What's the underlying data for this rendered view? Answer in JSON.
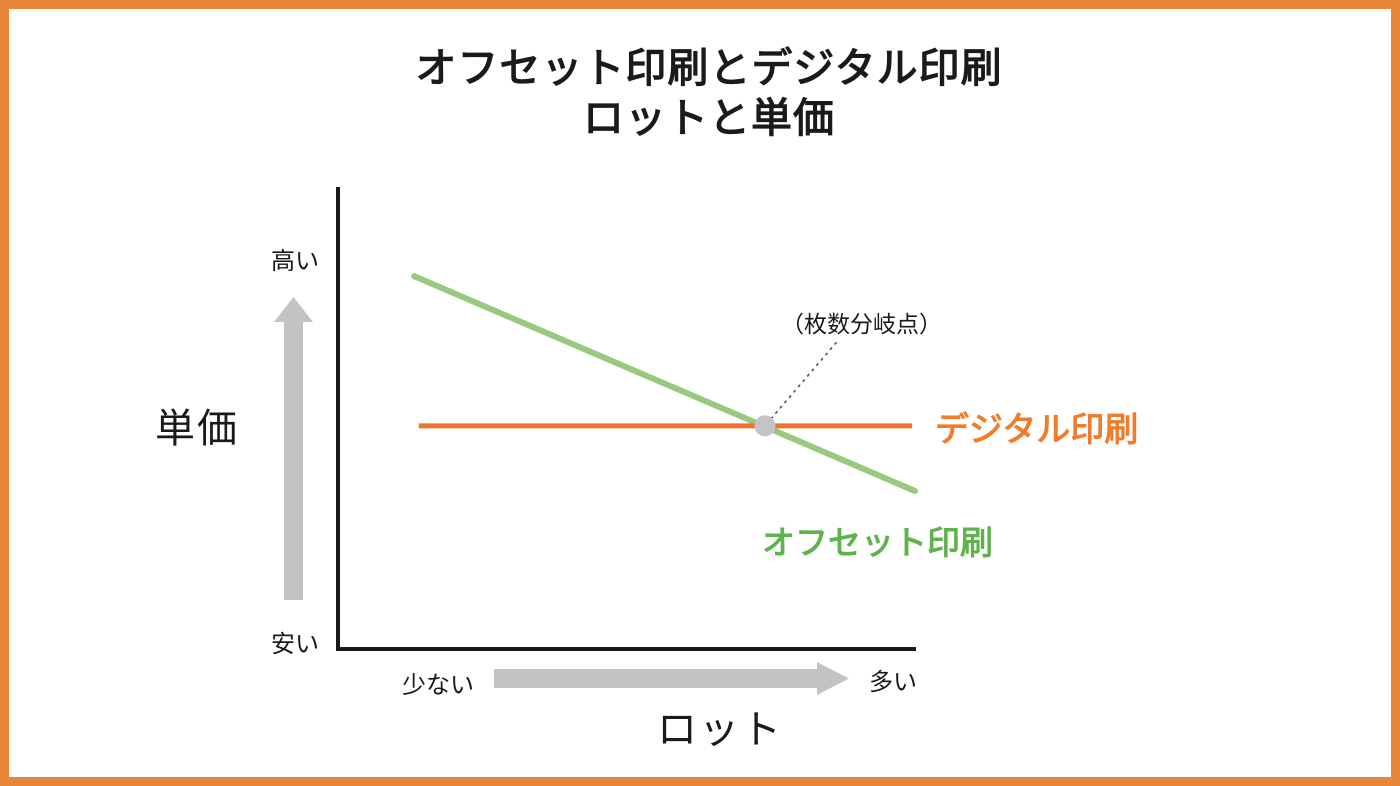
{
  "frame": {
    "border_color": "#E98536",
    "background": "#FFFFFF"
  },
  "title": {
    "line1": "オフセット印刷とデジタル印刷",
    "line2": "ロットと単価"
  },
  "axes": {
    "y_label": "単価",
    "y_max_label": "高い",
    "y_min_label": "安い",
    "x_label": "ロット",
    "x_min_label": "少ない",
    "x_max_label": "多い",
    "axis_color": "#1A1A1A",
    "arrow_color": "#C3C3C3"
  },
  "chart_data": {
    "type": "line",
    "title": "オフセット印刷とデジタル印刷 ロットと単価",
    "xlabel": "ロット",
    "ylabel": "単価",
    "x_axis": {
      "type": "qualitative",
      "min_label": "少ない",
      "max_label": "多い"
    },
    "y_axis": {
      "type": "qualitative",
      "min_label": "安い",
      "max_label": "高い"
    },
    "grid": false,
    "series": [
      {
        "name": "オフセット印刷",
        "trend": "decreasing",
        "color": "#97C97E",
        "label_color": "#5FB34C",
        "points": [
          [
            0.132,
            0.807
          ],
          [
            1.0,
            0.342
          ]
        ]
      },
      {
        "name": "デジタル印刷",
        "trend": "constant",
        "color": "#EE7428",
        "label_color": "#EF7D2C",
        "points": [
          [
            0.14,
            0.483
          ],
          [
            0.995,
            0.483
          ]
        ]
      }
    ],
    "annotation": {
      "label": "（枚数分岐点）",
      "meaning": "break-even point where offset and digital unit prices cross",
      "point": [
        0.74,
        0.483
      ],
      "pointer_from": [
        0.864,
        0.664
      ],
      "point_color": "#C4C4C4",
      "pointer_color": "#555555"
    }
  }
}
